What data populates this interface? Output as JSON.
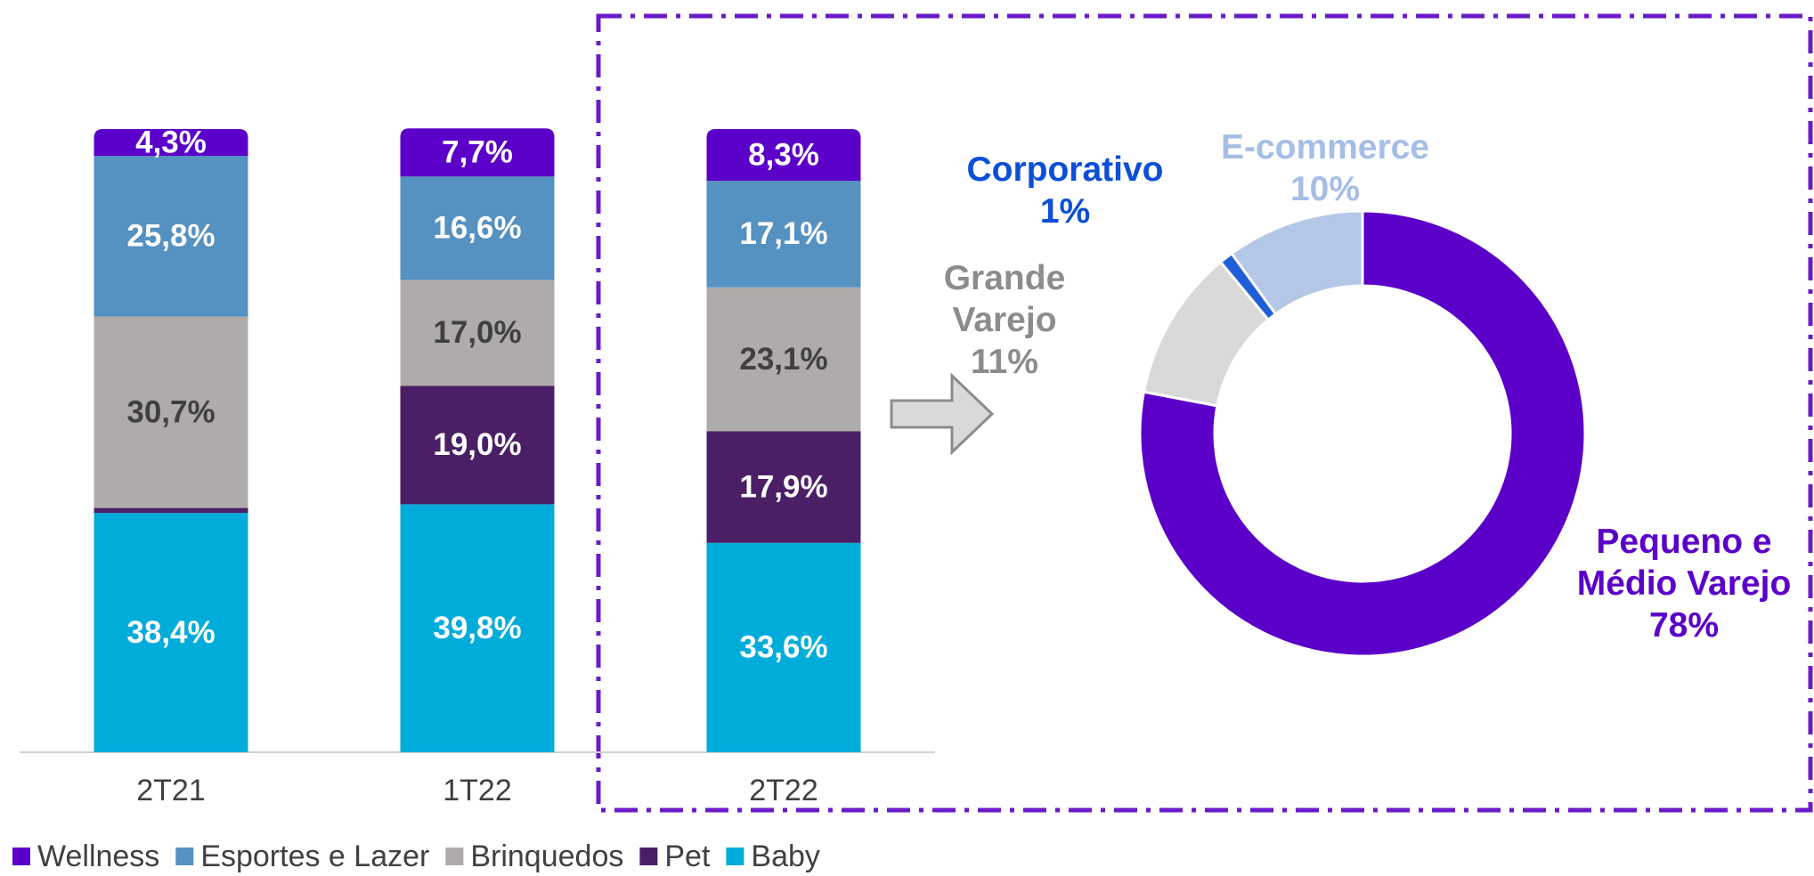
{
  "chart_data": [
    {
      "type": "bar",
      "stacked": true,
      "legend": "bottom",
      "categories": [
        "2T21",
        "1T22",
        "2T22"
      ],
      "series": [
        {
          "name": "Wellness",
          "color": "#5b00c8",
          "label_color": "#ffffff",
          "values": [
            4.3,
            7.7,
            8.3
          ],
          "value_labels": [
            "4,3%",
            "7,7%",
            "8,3%"
          ]
        },
        {
          "name": "Esportes e Lazer",
          "color": "#5591c1",
          "label_color": "#ffffff",
          "values": [
            25.8,
            16.6,
            17.1
          ],
          "value_labels": [
            "25,8%",
            "16,6%",
            "17,1%"
          ]
        },
        {
          "name": "Brinquedos",
          "color": "#afabab",
          "label_color": "#404040",
          "values": [
            30.7,
            17.0,
            23.1
          ],
          "value_labels": [
            "30,7%",
            "17,0%",
            "23,1%"
          ]
        },
        {
          "name": "Pet",
          "color": "#4b1f66",
          "label_color": "#ffffff",
          "values": [
            0.8,
            19.0,
            17.9
          ],
          "value_labels": [
            null,
            "19,0%",
            "17,9%"
          ]
        },
        {
          "name": "Baby",
          "color": "#00acd9",
          "label_color": "#ffffff",
          "values": [
            38.4,
            39.8,
            33.6
          ],
          "value_labels": [
            "38,4%",
            "39,8%",
            "33,6%"
          ]
        }
      ]
    },
    {
      "type": "pie",
      "donut": true,
      "categories": [
        "Pequeno e Médio Varejo",
        "Grande Varejo",
        "Corporativo",
        "E-commerce"
      ],
      "values": [
        78,
        11,
        1,
        10
      ],
      "value_labels": [
        "78%",
        "11%",
        "1%",
        "10%"
      ],
      "colors": [
        "#5b00c8",
        "#d9d9d9",
        "#1f5fd6",
        "#b4c7e7"
      ],
      "label_colors": [
        "#5b00c8",
        "#8c8c8c",
        "#0b4fd6",
        "#a6bde6"
      ]
    }
  ]
}
